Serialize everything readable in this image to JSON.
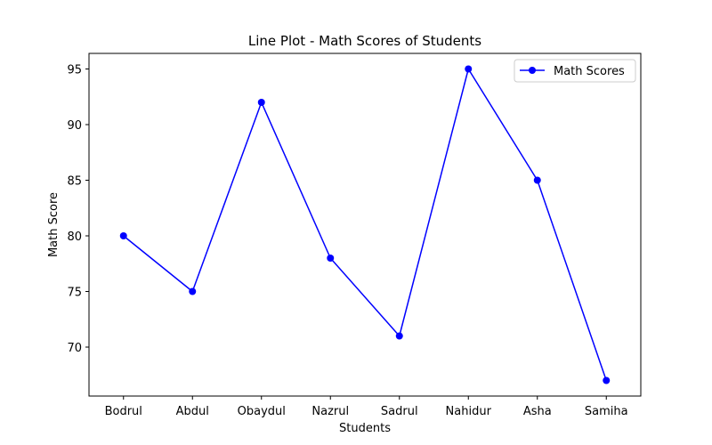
{
  "chart_data": {
    "type": "line",
    "title": "Line Plot - Math Scores of Students",
    "xlabel": "Students",
    "ylabel": "Math Score",
    "categories": [
      "Bodrul",
      "Abdul",
      "Obaydul",
      "Nazrul",
      "Sadrul",
      "Nahidur",
      "Asha",
      "Samiha"
    ],
    "series": [
      {
        "name": "Math Scores",
        "values": [
          80,
          75,
          92,
          78,
          71,
          95,
          85,
          67
        ],
        "color": "#0000ff",
        "marker": "circle"
      }
    ],
    "ylim": [
      65.6,
      96.4
    ],
    "yticks": [
      70,
      75,
      80,
      85,
      90,
      95
    ],
    "grid": false,
    "legend_position": "top-right"
  }
}
